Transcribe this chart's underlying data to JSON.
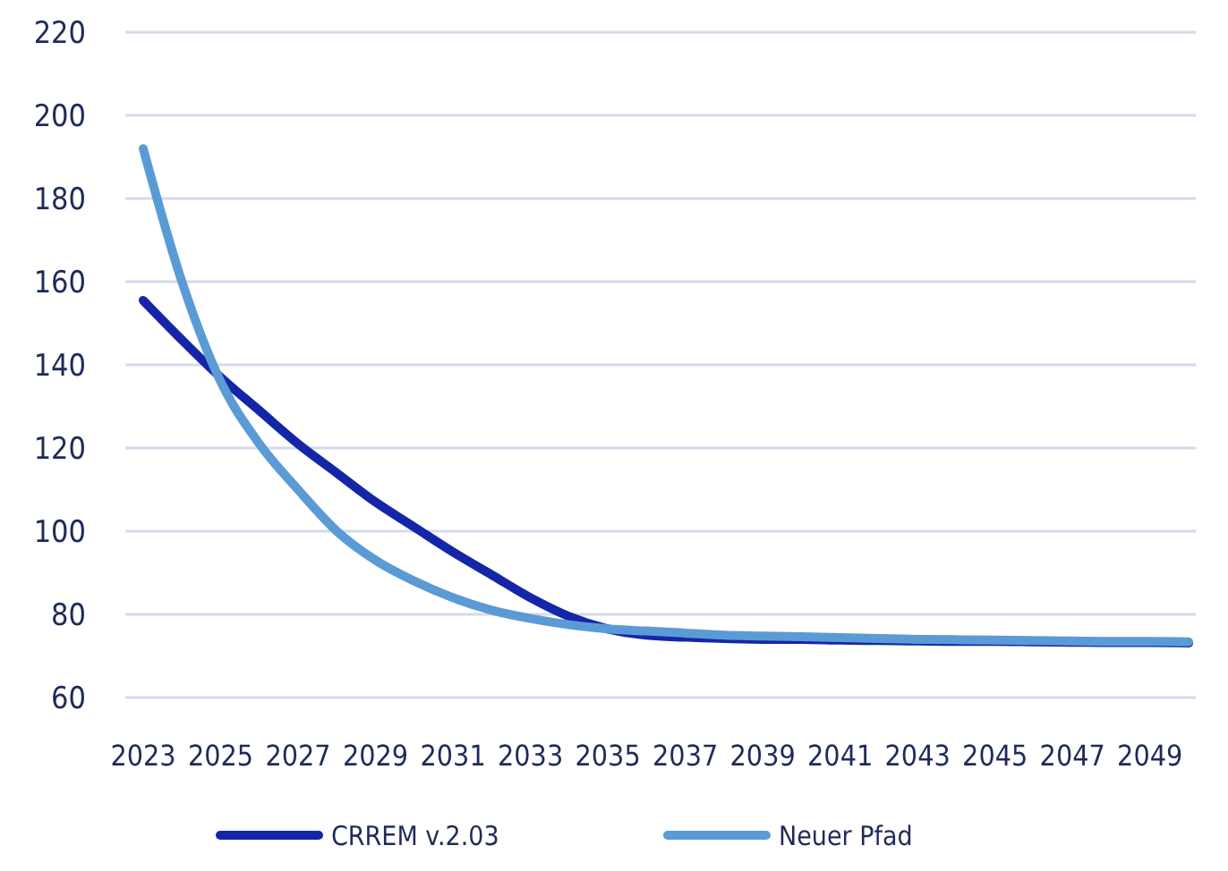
{
  "chart_data": {
    "type": "line",
    "categories": [
      "2023",
      null,
      "2025",
      null,
      "2027",
      null,
      "2029",
      null,
      "2031",
      null,
      "2033",
      null,
      "2035",
      null,
      "2037",
      null,
      "2039",
      null,
      "2041",
      null,
      "2043",
      null,
      "2045",
      null,
      "2047",
      null,
      "2049",
      null
    ],
    "series": [
      {
        "name": "CRREM v.2.03",
        "color": "#1426a8",
        "values": [
          155.5,
          146,
          137,
          129,
          121,
          114,
          107,
          101,
          95,
          89.5,
          84,
          79.5,
          76.5,
          75,
          74.5,
          74.2,
          74,
          74,
          73.8,
          73.7,
          73.6,
          73.5,
          73.5,
          73.4,
          73.3,
          73.2,
          73.2,
          73.1
        ]
      },
      {
        "name": "Neuer Pfad",
        "color": "#5b9bd5",
        "values": [
          192,
          160,
          136,
          121,
          110,
          100,
          93,
          88,
          84,
          81,
          79,
          77.5,
          76.5,
          76,
          75.5,
          75,
          74.8,
          74.6,
          74.4,
          74.2,
          74,
          73.9,
          73.8,
          73.7,
          73.6,
          73.5,
          73.5,
          73.4
        ]
      }
    ],
    "ylim": [
      60,
      220
    ],
    "yticks": [
      60,
      80,
      100,
      120,
      140,
      160,
      180,
      200,
      220
    ],
    "grid": "y",
    "legend": "bottom",
    "line_style": "solid"
  }
}
